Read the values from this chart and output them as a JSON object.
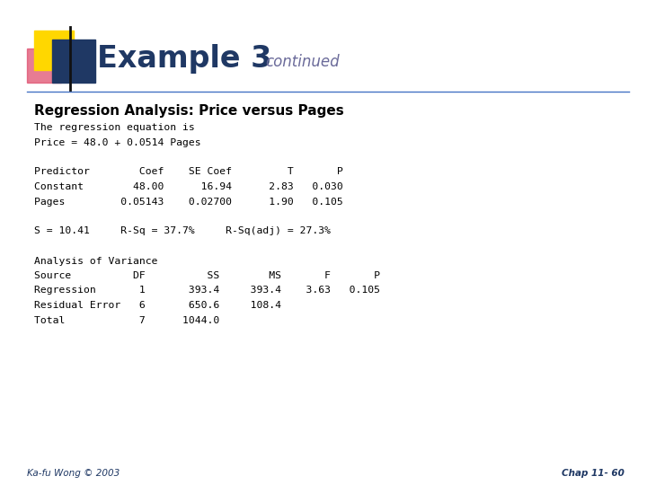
{
  "title_main": "Example 3",
  "title_sub": "continued",
  "title_main_color": "#1F3864",
  "title_sub_color": "#6B6B9A",
  "subtitle": "Regression Analysis: Price versus Pages",
  "subtitle_color": "#000000",
  "bg_color": "#FFFFFF",
  "monospace_lines": [
    "The regression equation is",
    "Price = 48.0 + 0.0514 Pages",
    "",
    "Predictor        Coef    SE Coef         T       P",
    "Constant        48.00      16.94      2.83   0.030",
    "Pages         0.05143    0.02700      1.90   0.105",
    "",
    "S = 10.41     R-Sq = 37.7%     R-Sq(adj) = 27.3%",
    "",
    "Analysis of Variance",
    "Source          DF          SS        MS       F       P",
    "Regression       1       393.4     393.4    3.63   0.105",
    "Residual Error   6       650.6     108.4",
    "Total            7      1044.0"
  ],
  "footer_left": "Ka-fu Wong © 2003",
  "footer_right": "Chap 11- 60",
  "footer_color": "#1F3864",
  "deco_yellow": "#FFD700",
  "deco_blue": "#1F3864",
  "deco_red": "#DD4466",
  "line_color": "#4472C4"
}
